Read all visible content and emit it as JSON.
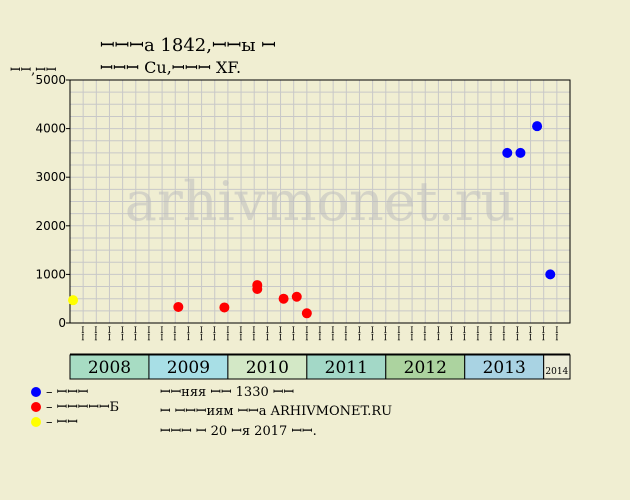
{
  "title_line1": "ꟷꟷꟷа 1842,ꟷꟷы ꟷ",
  "title_line2": "ꟷꟷꟷ Cu,ꟷꟷꟷ XF.",
  "ylabel": "ꟷꟷ,ꟷꟷ",
  "watermark": "arhivmonet.ru",
  "colors": {
    "background": "#f0eed2",
    "auction": "#0000ff",
    "shop": "#ff0000",
    "other": "#ffff00",
    "grid": "#c8c8c8"
  },
  "chart_data": {
    "type": "scatter",
    "ylim": [
      0,
      5000
    ],
    "yticks": [
      0,
      1000,
      2000,
      3000,
      4000,
      5000
    ],
    "grid": true,
    "legend_position": "bottom-left",
    "month_labels": [
      "ꟷꟷ",
      "ꟷꟷ",
      "ꟷꟷ",
      "ꟷꟷ",
      "ꟷꟷ",
      "ꟷꟷ"
    ],
    "years": [
      {
        "label": "2008",
        "color": "#a7dcc3"
      },
      {
        "label": "2009",
        "color": "#a8dfe6"
      },
      {
        "label": "2010",
        "color": "#d3e8c6"
      },
      {
        "label": "2011",
        "color": "#a3d8c7"
      },
      {
        "label": "2012",
        "color": "#acd39f"
      },
      {
        "label": "2013",
        "color": "#a9d3e3"
      },
      {
        "label": "2014",
        "color": "#ececd7"
      }
    ],
    "series": [
      {
        "key": "auction",
        "color": "#0000ff",
        "points": [
          {
            "x": "2013-07-15",
            "y": 3500
          },
          {
            "x": "2013-09-15",
            "y": 3500
          },
          {
            "x": "2013-12-01",
            "y": 4050
          },
          {
            "x": "2014-02-01",
            "y": 1000
          }
        ]
      },
      {
        "key": "shop",
        "color": "#ff0000",
        "points": [
          {
            "x": "2009-05-15",
            "y": 330
          },
          {
            "x": "2009-12-15",
            "y": 320
          },
          {
            "x": "2010-05-15",
            "y": 780
          },
          {
            "x": "2010-05-15",
            "y": 700
          },
          {
            "x": "2010-09-15",
            "y": 500
          },
          {
            "x": "2010-11-15",
            "y": 540
          },
          {
            "x": "2011-01-01",
            "y": 200
          }
        ]
      },
      {
        "key": "other",
        "color": "#ffff00",
        "points": [
          {
            "x": "2008-01-15",
            "y": 470
          }
        ]
      }
    ],
    "legend": [
      {
        "key": "auction",
        "label": "– ꟷꟷꟷ"
      },
      {
        "key": "shop",
        "label": "– ꟷꟷꟷꟷꟷБ"
      },
      {
        "key": "other",
        "label": "– ꟷꟷ"
      }
    ]
  },
  "info": {
    "line1": "ꟷꟷняя ꟷꟷ 1330 ꟷꟷ",
    "line2": "ꟷ ꟷꟷꟷиям ꟷꟷа ARHIVMONET.RU",
    "line3": "ꟷꟷꟷ ꟷ 20 ꟷя 2017 ꟷꟷ."
  }
}
